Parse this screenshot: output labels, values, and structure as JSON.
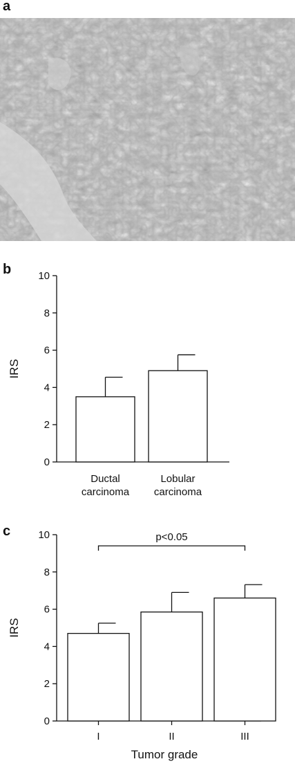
{
  "panels": {
    "a": {
      "letter": "a"
    },
    "b": {
      "letter": "b"
    },
    "c": {
      "letter": "c"
    }
  },
  "chart_data": [
    {
      "type": "bar",
      "panel": "b",
      "categories": [
        "Ductal carcinoma",
        "Lobular carcinoma"
      ],
      "category_lines": [
        [
          "Ductal",
          "carcinoma"
        ],
        [
          "Lobular",
          "carcinoma"
        ]
      ],
      "values": [
        3.5,
        4.9
      ],
      "errors": [
        1.05,
        0.85
      ],
      "title": "",
      "xlabel": "",
      "ylabel": "IRS",
      "ylim": [
        0,
        10
      ],
      "yticks": [
        0,
        2,
        4,
        6,
        8,
        10
      ],
      "grid": false,
      "bar_color": "#ffffff",
      "stroke_color": "#111111"
    },
    {
      "type": "bar",
      "panel": "c",
      "categories": [
        "I",
        "II",
        "III"
      ],
      "category_lines": [
        [
          "I"
        ],
        [
          "II"
        ],
        [
          "III"
        ]
      ],
      "values": [
        4.7,
        5.85,
        6.6
      ],
      "errors": [
        0.55,
        1.05,
        0.72
      ],
      "title": "",
      "xlabel": "Tumor grade",
      "ylabel": "IRS",
      "ylim": [
        0,
        10
      ],
      "yticks": [
        0,
        2,
        4,
        6,
        8,
        10
      ],
      "grid": false,
      "annotation": {
        "text": "p<0.05",
        "from": 0,
        "to": 2,
        "y": 9.4
      },
      "bar_color": "#ffffff",
      "stroke_color": "#111111"
    }
  ]
}
